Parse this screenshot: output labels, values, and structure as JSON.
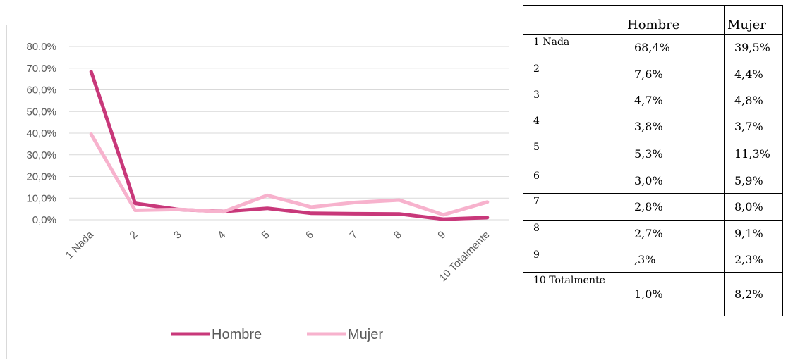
{
  "chart_data": {
    "type": "line",
    "categories": [
      "1 Nada",
      "2",
      "3",
      "4",
      "5",
      "6",
      "7",
      "8",
      "9",
      "10 Totalmente"
    ],
    "series": [
      {
        "name": "Hombre",
        "color": "#c8387a",
        "values": [
          68.4,
          7.6,
          4.7,
          3.8,
          5.3,
          3.0,
          2.8,
          2.7,
          0.3,
          1.0
        ]
      },
      {
        "name": "Mujer",
        "color": "#f7b2cd",
        "values": [
          39.5,
          4.4,
          4.8,
          3.7,
          11.3,
          5.9,
          8.0,
          9.1,
          2.3,
          8.2
        ]
      }
    ],
    "y_ticks": [
      "0,0%",
      "10,0%",
      "20,0%",
      "30,0%",
      "40,0%",
      "50,0%",
      "60,0%",
      "70,0%",
      "80,0%"
    ],
    "ylim": [
      0,
      80
    ],
    "grid": true,
    "legend": "bottom"
  },
  "table": {
    "header": [
      "",
      "Hombre",
      "Mujer"
    ],
    "rows": [
      {
        "label": "1 Nada",
        "hombre": "68,4%",
        "mujer": "39,5%"
      },
      {
        "label": "2",
        "hombre": "7,6%",
        "mujer": "4,4%"
      },
      {
        "label": "3",
        "hombre": "4,7%",
        "mujer": "4,8%"
      },
      {
        "label": "4",
        "hombre": "3,8%",
        "mujer": "3,7%"
      },
      {
        "label": "5",
        "hombre": "5,3%",
        "mujer": "11,3%"
      },
      {
        "label": "6",
        "hombre": "3,0%",
        "mujer": "5,9%"
      },
      {
        "label": "7",
        "hombre": "2,8%",
        "mujer": "8,0%"
      },
      {
        "label": "8",
        "hombre": "2,7%",
        "mujer": "9,1%"
      },
      {
        "label": "9",
        "hombre": ",3%",
        "mujer": "2,3%"
      },
      {
        "label": "10 Totalmente",
        "hombre": "1,0%",
        "mujer": "8,2%"
      }
    ]
  }
}
